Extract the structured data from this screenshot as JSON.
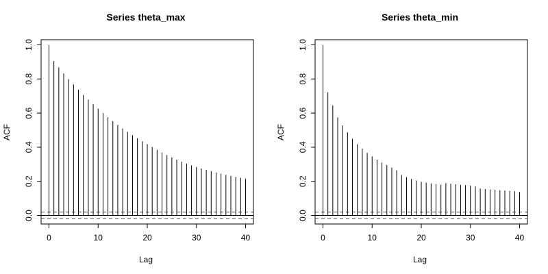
{
  "chart_data": [
    {
      "type": "bar",
      "title": "Series  theta_max",
      "xlabel": "Lag",
      "ylabel": "ACF",
      "xlim": [
        -1.6,
        41.6
      ],
      "ylim": [
        -0.05,
        1.03
      ],
      "x_ticks": [
        0,
        10,
        20,
        30,
        40
      ],
      "x_tick_labels": [
        "0",
        "10",
        "20",
        "30",
        "40"
      ],
      "y_ticks": [
        0.0,
        0.2,
        0.4,
        0.6,
        0.8,
        1.0
      ],
      "y_tick_labels": [
        "0.0",
        "0.2",
        "0.4",
        "0.6",
        "0.8",
        "1.0"
      ],
      "lags": [
        0,
        1,
        2,
        3,
        4,
        5,
        6,
        7,
        8,
        9,
        10,
        11,
        12,
        13,
        14,
        15,
        16,
        17,
        18,
        19,
        20,
        21,
        22,
        23,
        24,
        25,
        26,
        27,
        28,
        29,
        30,
        31,
        32,
        33,
        34,
        35,
        36,
        37,
        38,
        39,
        40
      ],
      "acf": [
        1.0,
        0.905,
        0.868,
        0.833,
        0.799,
        0.768,
        0.737,
        0.707,
        0.679,
        0.652,
        0.626,
        0.6,
        0.576,
        0.553,
        0.531,
        0.51,
        0.49,
        0.471,
        0.453,
        0.435,
        0.418,
        0.401,
        0.385,
        0.369,
        0.354,
        0.34,
        0.327,
        0.315,
        0.304,
        0.294,
        0.284,
        0.275,
        0.267,
        0.26,
        0.252,
        0.245,
        0.238,
        0.232,
        0.226,
        0.221,
        0.216
      ],
      "confidence_bound": 0.02,
      "colors": {
        "bars": "#000000",
        "confidence": "#3b3bd6",
        "zero_line": "#000000"
      },
      "grid": false
    },
    {
      "type": "bar",
      "title": "Series  theta_min",
      "xlabel": "Lag",
      "ylabel": "ACF",
      "xlim": [
        -1.6,
        41.6
      ],
      "ylim": [
        -0.05,
        1.03
      ],
      "x_ticks": [
        0,
        10,
        20,
        30,
        40
      ],
      "x_tick_labels": [
        "0",
        "10",
        "20",
        "30",
        "40"
      ],
      "y_ticks": [
        0.0,
        0.2,
        0.4,
        0.6,
        0.8,
        1.0
      ],
      "y_tick_labels": [
        "0.0",
        "0.2",
        "0.4",
        "0.6",
        "0.8",
        "1.0"
      ],
      "lags": [
        0,
        1,
        2,
        3,
        4,
        5,
        6,
        7,
        8,
        9,
        10,
        11,
        12,
        13,
        14,
        15,
        16,
        17,
        18,
        19,
        20,
        21,
        22,
        23,
        24,
        25,
        26,
        27,
        28,
        29,
        30,
        31,
        32,
        33,
        34,
        35,
        36,
        37,
        38,
        39,
        40
      ],
      "acf": [
        1.0,
        0.722,
        0.645,
        0.575,
        0.527,
        0.487,
        0.45,
        0.418,
        0.392,
        0.367,
        0.346,
        0.327,
        0.31,
        0.296,
        0.281,
        0.265,
        0.237,
        0.225,
        0.214,
        0.205,
        0.198,
        0.193,
        0.188,
        0.184,
        0.18,
        0.19,
        0.186,
        0.183,
        0.18,
        0.178,
        0.175,
        0.17,
        0.158,
        0.155,
        0.152,
        0.15,
        0.148,
        0.146,
        0.144,
        0.142,
        0.137
      ],
      "confidence_bound": 0.02,
      "colors": {
        "bars": "#000000",
        "confidence": "#3b3bd6",
        "zero_line": "#000000"
      },
      "grid": false
    }
  ]
}
